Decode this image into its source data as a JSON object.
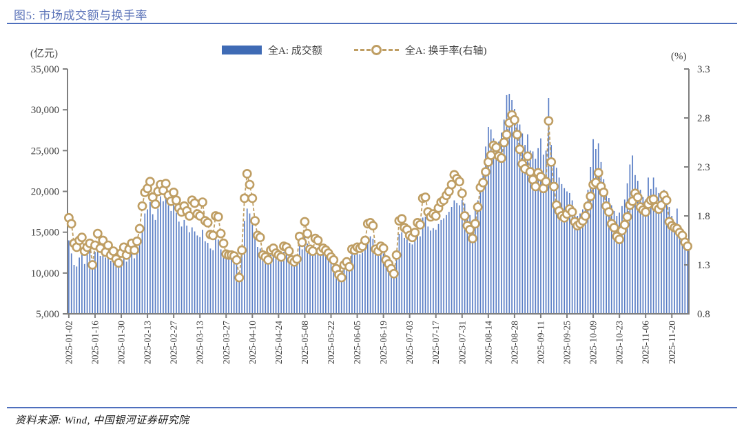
{
  "figure": {
    "title": "图5: 市场成交额与换手率",
    "source": "资料来源: Wind, 中国银河证券研究院"
  },
  "legend": {
    "volume_label": "全A: 成交额",
    "turnover_label": "全A: 换手率(右轴)"
  },
  "colors": {
    "title_blue": "#5A72B8",
    "rule_blue": "#4E6FBD",
    "bar_blue": "#5A7EC5",
    "legend_bar_blue": "#3F6BB5",
    "line_tan": "#BF9E63",
    "axis_gray": "#7F7F7F",
    "tick_text_gray": "#3F3F3F"
  },
  "chart_data": {
    "type": "bar+line combo, daily",
    "left_axis": {
      "unit": "(亿元)",
      "min": 5000,
      "max": 35000,
      "step": 5000,
      "tick_labels": [
        "35,000",
        "30,000",
        "25,000",
        "20,000",
        "15,000",
        "10,000",
        "5,000"
      ]
    },
    "right_axis": {
      "unit": "(%)",
      "min": 0.8,
      "max": 3.3,
      "step": 0.5,
      "tick_labels": [
        "3.3",
        "2.8",
        "2.3",
        "1.8",
        "1.3",
        "0.8"
      ]
    },
    "x_tick_every": 10,
    "x_tick_labels": [
      "2025-01-02",
      "2025-01-16",
      "2025-01-30",
      "2025-02-13",
      "2025-02-27",
      "2025-03-13",
      "2025-03-27",
      "2025-04-10",
      "2025-04-24",
      "2025-05-08",
      "2025-05-22",
      "2025-06-05",
      "2025-06-19",
      "2025-07-03",
      "2025-07-17",
      "2025-07-31",
      "2025-08-14",
      "2025-08-28",
      "2025-09-11",
      "2025-09-25",
      "2025-10-09",
      "2025-10-23",
      "2025-11-06",
      "2025-11-20"
    ],
    "grid": false,
    "legend_position": "top-center",
    "series": [
      {
        "name": "全A: 成交额",
        "type": "bar",
        "axis": "left",
        "color": "#5A7EC5",
        "values": [
          14000,
          12400,
          11000,
          10800,
          11900,
          12300,
          11100,
          12700,
          13300,
          10900,
          12600,
          13700,
          12100,
          12900,
          11900,
          12400,
          11500,
          11800,
          11100,
          10800,
          11600,
          12100,
          11400,
          11900,
          12400,
          11800,
          12600,
          13700,
          15900,
          17300,
          17800,
          18700,
          17200,
          16500,
          17900,
          19400,
          18800,
          19600,
          18300,
          17600,
          18500,
          17400,
          16300,
          15700,
          16500,
          15800,
          15000,
          15600,
          15100,
          14600,
          14400,
          15300,
          13900,
          13700,
          13000,
          12800,
          14200,
          14100,
          12900,
          12400,
          12000,
          11800,
          11900,
          11600,
          11100,
          9200,
          12500,
          16400,
          17900,
          17300,
          16800,
          14500,
          13200,
          13000,
          11900,
          11700,
          11400,
          12200,
          12400,
          12000,
          11900,
          11700,
          12600,
          12500,
          12100,
          11400,
          11200,
          11500,
          13300,
          12900,
          14600,
          13600,
          12300,
          12100,
          13200,
          13000,
          12100,
          12400,
          12200,
          12000,
          11700,
          11400,
          10700,
          10200,
          9900,
          11000,
          11200,
          10800,
          12300,
          12200,
          12400,
          12300,
          12500,
          13000,
          14400,
          14500,
          14200,
          12300,
          12100,
          12500,
          12400,
          11400,
          11100,
          10700,
          10300,
          11900,
          14800,
          15000,
          14300,
          14100,
          13700,
          13500,
          13900,
          14700,
          14500,
          16800,
          16900,
          15700,
          15200,
          15500,
          15300,
          16000,
          16500,
          16700,
          17100,
          17500,
          18100,
          18900,
          18600,
          18300,
          18950,
          18500,
          17500,
          17100,
          16300,
          18100,
          18900,
          20900,
          22100,
          25500,
          27900,
          27600,
          26500,
          25000,
          26100,
          27200,
          28800,
          31800,
          31950,
          31200,
          30100,
          28300,
          28200,
          27100,
          25700,
          27000,
          25000,
          24900,
          24000,
          25300,
          26500,
          24500,
          25000,
          31450,
          25700,
          24000,
          22900,
          21700,
          20900,
          20400,
          20000,
          19800,
          18900,
          17500,
          17000,
          17300,
          17800,
          18600,
          20200,
          23000,
          26400,
          25200,
          25900,
          23600,
          21500,
          19800,
          19200,
          18300,
          17600,
          17000,
          17400,
          18200,
          19000,
          21000,
          23300,
          24400,
          22000,
          21300,
          20200,
          19300,
          19000,
          21700,
          20300,
          21700,
          20500,
          19800,
          19500,
          20200,
          20000,
          18100,
          17000,
          16100,
          17900,
          15100,
          14100,
          13500,
          13100
        ]
      },
      {
        "name": "全A: 换手率(右轴)",
        "type": "line",
        "axis": "right",
        "color": "#BF9E63",
        "marker": "open-circle",
        "dashed": true,
        "values": [
          1.78,
          1.72,
          1.52,
          1.48,
          1.55,
          1.58,
          1.44,
          1.48,
          1.52,
          1.3,
          1.5,
          1.62,
          1.47,
          1.55,
          1.43,
          1.5,
          1.4,
          1.44,
          1.36,
          1.32,
          1.42,
          1.48,
          1.4,
          1.46,
          1.52,
          1.45,
          1.54,
          1.67,
          1.9,
          2.04,
          2.08,
          2.15,
          1.99,
          1.92,
          2.05,
          2.12,
          2.06,
          2.13,
          2.01,
          1.95,
          2.04,
          1.96,
          1.88,
          1.84,
          1.9,
          1.85,
          1.8,
          1.96,
          1.93,
          1.82,
          1.8,
          1.94,
          1.75,
          1.73,
          1.61,
          1.6,
          1.8,
          1.79,
          1.62,
          1.52,
          1.41,
          1.4,
          1.4,
          1.39,
          1.35,
          1.17,
          1.45,
          1.98,
          2.23,
          2.12,
          1.98,
          1.75,
          1.6,
          1.58,
          1.4,
          1.38,
          1.35,
          1.45,
          1.47,
          1.42,
          1.4,
          1.38,
          1.49,
          1.48,
          1.44,
          1.35,
          1.33,
          1.36,
          1.59,
          1.53,
          1.74,
          1.62,
          1.46,
          1.44,
          1.57,
          1.55,
          1.44,
          1.47,
          1.45,
          1.42,
          1.38,
          1.35,
          1.26,
          1.2,
          1.17,
          1.3,
          1.33,
          1.28,
          1.46,
          1.45,
          1.48,
          1.47,
          1.49,
          1.55,
          1.72,
          1.73,
          1.7,
          1.46,
          1.44,
          1.49,
          1.47,
          1.35,
          1.31,
          1.26,
          1.21,
          1.4,
          1.75,
          1.77,
          1.68,
          1.66,
          1.6,
          1.58,
          1.63,
          1.73,
          1.71,
          1.98,
          1.99,
          1.84,
          1.79,
          1.82,
          1.8,
          1.88,
          1.94,
          1.96,
          2.01,
          2.05,
          2.12,
          2.22,
          2.18,
          2.15,
          2.03,
          1.8,
          1.7,
          1.66,
          1.57,
          1.72,
          1.89,
          2.09,
          2.14,
          2.25,
          2.35,
          2.42,
          2.52,
          2.5,
          2.41,
          2.39,
          2.55,
          2.63,
          2.75,
          2.83,
          2.78,
          2.63,
          2.48,
          2.33,
          2.28,
          2.41,
          2.25,
          2.17,
          2.1,
          2.24,
          2.2,
          2.08,
          2.15,
          2.77,
          2.35,
          2.1,
          1.91,
          1.85,
          1.8,
          1.78,
          1.82,
          1.87,
          1.84,
          1.74,
          1.7,
          1.72,
          1.75,
          1.8,
          1.9,
          2.0,
          2.12,
          2.14,
          2.24,
          2.1,
          2.04,
          1.9,
          1.84,
          1.72,
          1.68,
          1.59,
          1.56,
          1.65,
          1.71,
          1.79,
          1.91,
          1.95,
          2.03,
          1.99,
          1.89,
          1.86,
          1.84,
          1.92,
          1.96,
          1.97,
          1.89,
          1.87,
          1.91,
          2.01,
          1.96,
          1.74,
          1.7,
          1.68,
          1.67,
          1.63,
          1.6,
          1.53,
          1.49
        ]
      }
    ]
  }
}
